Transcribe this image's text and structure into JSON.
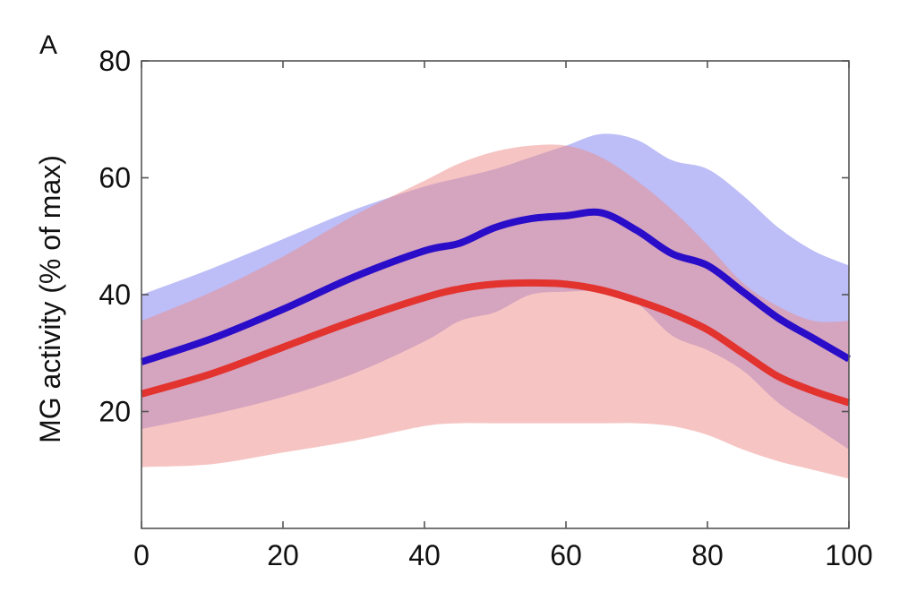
{
  "chart_data": {
    "type": "line",
    "panel_label": "A",
    "xlabel": "",
    "ylabel": "MG activity (% of max)",
    "xlim": [
      0,
      100
    ],
    "ylim": [
      0,
      80
    ],
    "x_ticks": [
      "0",
      "20",
      "40",
      "60",
      "80",
      "100"
    ],
    "y_ticks": [
      "20",
      "40",
      "60",
      "80"
    ],
    "grid": false,
    "legend": "none",
    "series": [
      {
        "color": "#2a0dc8",
        "band_color": "#7b7cf0",
        "x": [
          0,
          10,
          20,
          30,
          40,
          45,
          50,
          55,
          60,
          65,
          70,
          75,
          80,
          85,
          90,
          95,
          100
        ],
        "values": [
          28.5,
          32.5,
          37.5,
          43,
          47.5,
          48.8,
          51.5,
          53,
          53.5,
          54,
          51,
          47,
          45,
          40.5,
          36,
          32.5,
          29
        ],
        "upper": [
          40,
          44.5,
          49.5,
          54.5,
          58.5,
          60,
          61.5,
          63.5,
          65.5,
          67.5,
          66.5,
          63,
          61.5,
          57,
          51.5,
          47.5,
          45
        ],
        "lower": [
          17,
          19.5,
          22.5,
          26.5,
          32,
          35.5,
          37,
          40,
          40.5,
          40.5,
          38.5,
          33,
          30.5,
          27,
          21.5,
          17.5,
          13.5
        ]
      },
      {
        "color": "#e2332e",
        "band_color": "#ee8c88",
        "x": [
          0,
          10,
          20,
          30,
          40,
          45,
          50,
          55,
          60,
          65,
          70,
          75,
          80,
          85,
          90,
          95,
          100
        ],
        "values": [
          23,
          26.5,
          31,
          35.5,
          39.5,
          41,
          41.8,
          42,
          41.8,
          40.8,
          39,
          36.8,
          34,
          30,
          26,
          23.5,
          21.5
        ],
        "upper": [
          35.5,
          40.5,
          46.5,
          53.5,
          59.5,
          62.5,
          64.5,
          65.5,
          65.5,
          63.5,
          59.5,
          54.5,
          48.5,
          42,
          38,
          35.5,
          35.5
        ],
        "lower": [
          10.5,
          11,
          13,
          15,
          17.5,
          18,
          18,
          18,
          18,
          18,
          18,
          17.5,
          16,
          13.5,
          11.5,
          10,
          8.5
        ]
      }
    ]
  }
}
